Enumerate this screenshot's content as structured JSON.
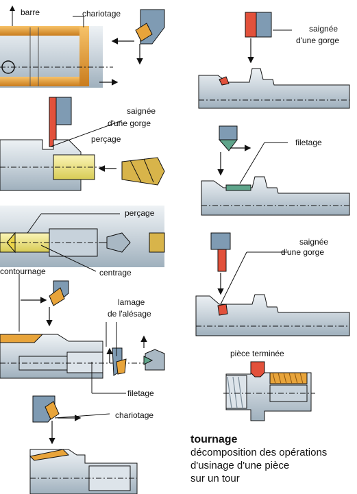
{
  "labels": {
    "barre": "barre",
    "chariotage_top": "chariotage",
    "saignee1_l1": "saignée",
    "saignee1_l2": "d'une gorge",
    "percage1": "perçage",
    "saignee2_l1": "saignée",
    "saignee2_l2": "d'une gorge",
    "percage2": "perçage",
    "centrage": "centrage",
    "filetage_right": "filetage",
    "contournage": "contournage",
    "lamage_l1": "lamage",
    "lamage_l2": "de l'alésage",
    "saignee3_l1": "saignée",
    "saignee3_l2": "d'une gorge",
    "filetage_bottom": "filetage",
    "piece_terminee": "pièce terminée",
    "chariotage_bottom": "chariotage"
  },
  "caption": {
    "title": "tournage",
    "line1": "décomposition des opérations",
    "line2": "d'usinage d'une pièce",
    "line3": "sur un tour"
  },
  "colors": {
    "steel_light": "#d9dfe4",
    "steel_mid": "#a9b8c4",
    "steel_dark": "#6f8494",
    "tool_blue": "#7f9bb3",
    "gold": "#e8a43a",
    "yellow": "#f2ea8a",
    "red": "#e2513b",
    "green": "#5fa58b",
    "line": "#111111"
  }
}
